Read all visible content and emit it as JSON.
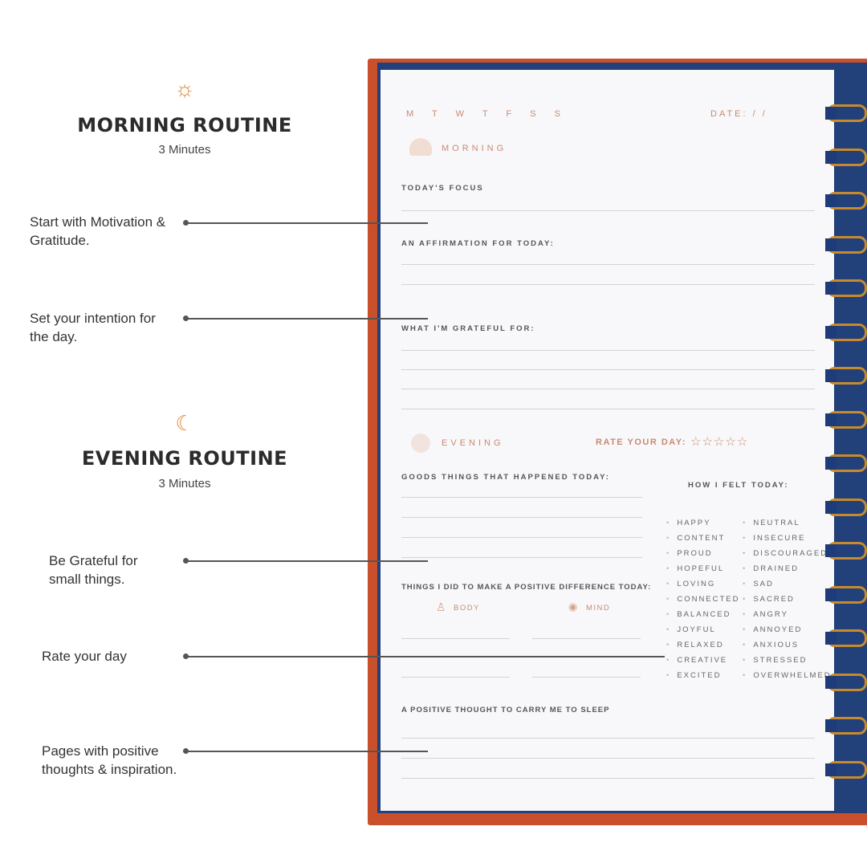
{
  "morning": {
    "icon": "sun-icon",
    "title": "MORNING ROUTINE",
    "duration": "3 Minutes"
  },
  "evening": {
    "icon": "moon-icon",
    "title": "EVENING ROUTINE",
    "duration": "3 Minutes"
  },
  "callouts": [
    "Start with Motivation & Gratitude.",
    "Set your intention for the day.",
    "Be Grateful for small things.",
    "Rate your day",
    "Pages with positive thoughts & inspiration."
  ],
  "planner": {
    "days": "M T W T F S S",
    "date": "DATE:  /  /",
    "morning_label": "MORNING",
    "todays_focus": "TODAY'S FOCUS",
    "affirmation": "AN AFFIRMATION FOR TODAY:",
    "grateful": "WHAT I'M GRATEFUL FOR:",
    "evening_label": "EVENING",
    "rate": "RATE YOUR DAY:",
    "rating_stars": 5,
    "goods": "GOODS THINGS THAT HAPPENED TODAY:",
    "how_felt": "HOW I FELT TODAY:",
    "difference": "THINGS I DID TO MAKE A POSITIVE DIFFERENCE TODAY:",
    "body": "BODY",
    "mind": "MIND",
    "thought": "A POSITIVE THOUGHT TO CARRY ME TO SLEEP",
    "moods_left": [
      "HAPPY",
      "CONTENT",
      "PROUD",
      "HOPEFUL",
      "LOVING",
      "CONNECTED",
      "BALANCED",
      "JOYFUL",
      "RELAXED",
      "CREATIVE",
      "EXCITED"
    ],
    "moods_right": [
      "NEUTRAL",
      "INSECURE",
      "DISCOURAGED",
      "DRAINED",
      "SAD",
      "SACRED",
      "ANGRY",
      "ANNOYED",
      "ANXIOUS",
      "STRESSED",
      "OVERWHELMED"
    ]
  },
  "colors": {
    "accent": "#e08a3a",
    "cover": "#c9502b",
    "copper": "#c98a70"
  }
}
